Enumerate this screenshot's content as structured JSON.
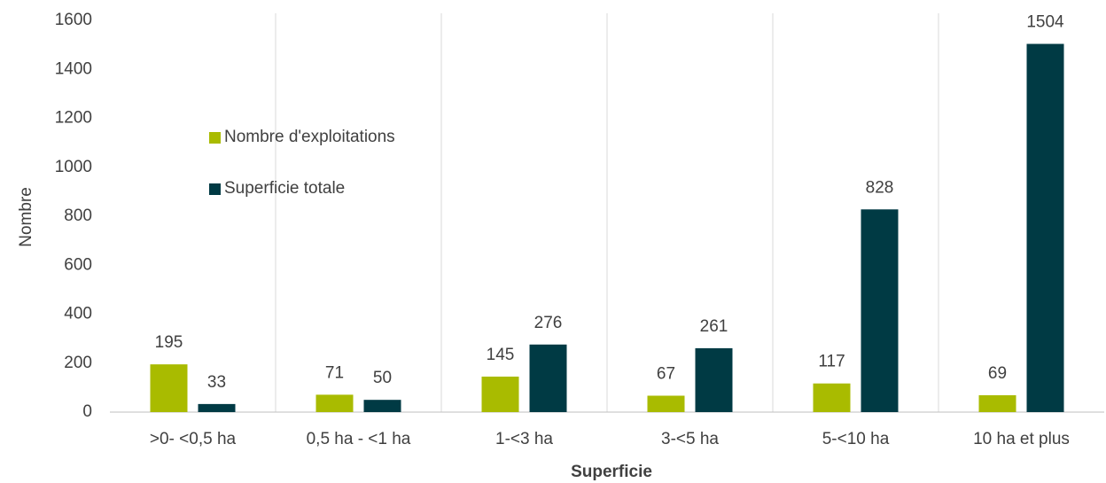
{
  "chart_data": {
    "type": "bar",
    "xlabel": "Superficie",
    "ylabel": "Nombre",
    "categories": [
      ">0- <0,5 ha",
      "0,5 ha - <1 ha",
      "1-<3 ha",
      "3-<5 ha",
      "5-<10 ha",
      "10 ha et plus"
    ],
    "series": [
      {
        "name": "Nombre d'exploitations",
        "color": "#a9bb00",
        "values": [
          195,
          71,
          145,
          67,
          117,
          69
        ]
      },
      {
        "name": "Superficie totale",
        "color": "#003a44",
        "values": [
          33,
          50,
          276,
          261,
          828,
          1504
        ]
      }
    ],
    "ylim": [
      0,
      1600
    ],
    "yticks": [
      0,
      200,
      400,
      600,
      800,
      1000,
      1200,
      1400,
      1600
    ],
    "grid": "category-separators",
    "legend": "upper left"
  }
}
